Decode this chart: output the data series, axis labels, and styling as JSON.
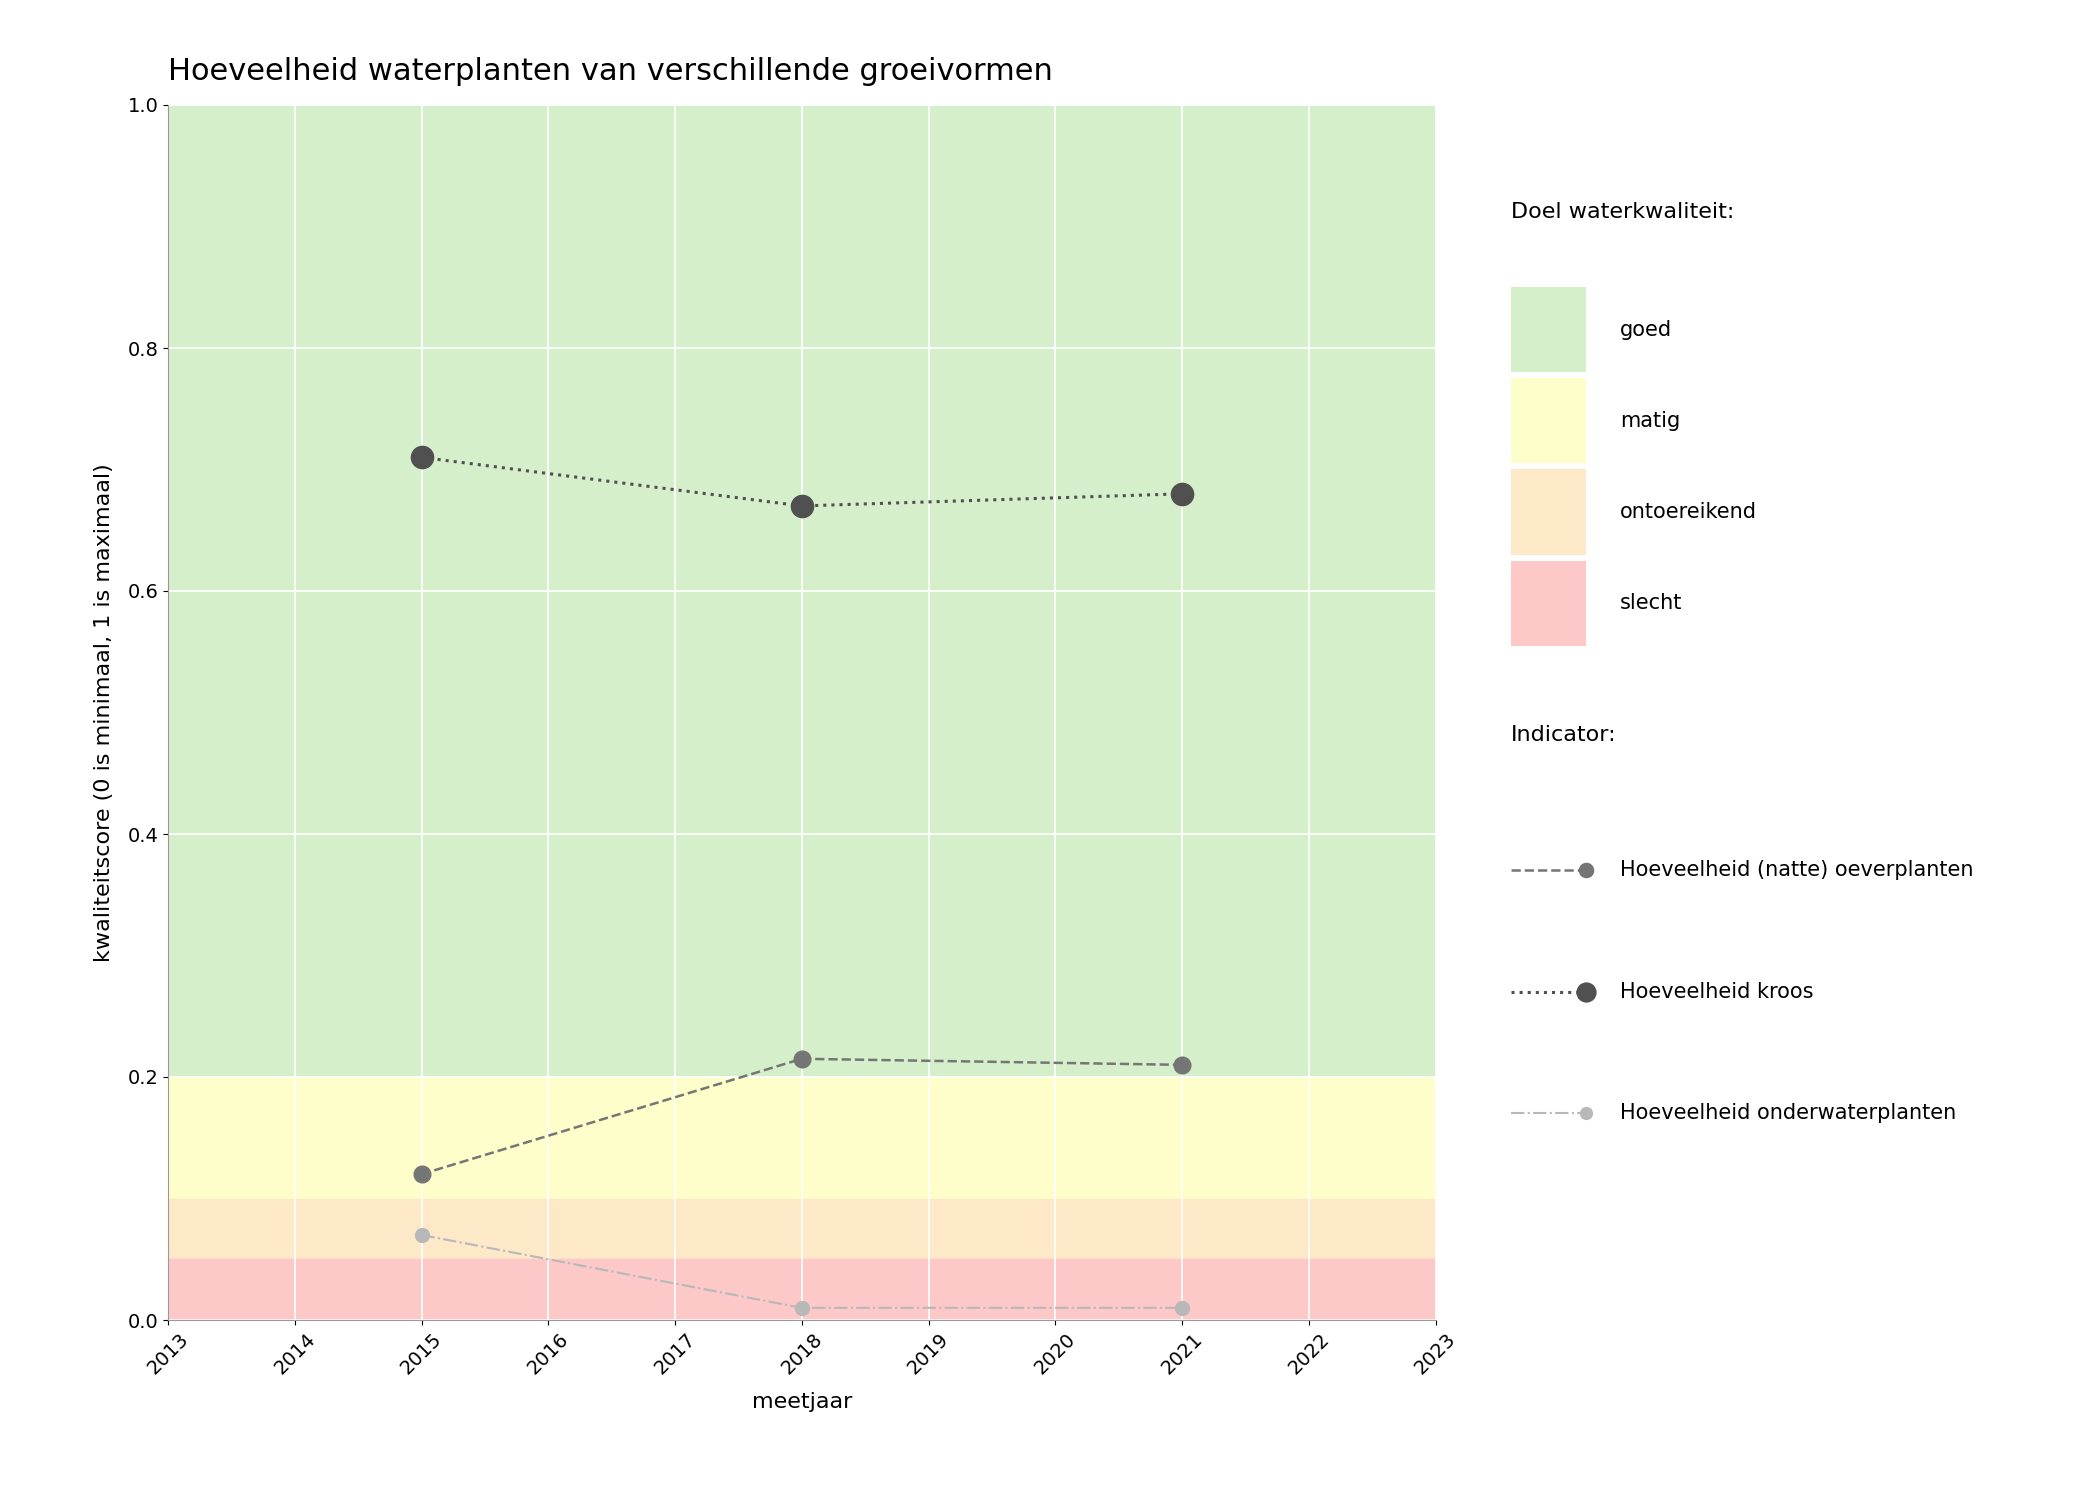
{
  "title": "Hoeveelheid waterplanten van verschillende groeivormen",
  "xlabel": "meetjaar",
  "ylabel": "kwaliteitscore (0 is minimaal, 1 is maximaal)",
  "xlim": [
    2013,
    2023
  ],
  "ylim": [
    0.0,
    1.0
  ],
  "xticks": [
    2013,
    2014,
    2015,
    2016,
    2017,
    2018,
    2019,
    2020,
    2021,
    2022,
    2023
  ],
  "yticks": [
    0.0,
    0.2,
    0.4,
    0.6,
    0.8,
    1.0
  ],
  "background_color": "#ffffff",
  "bg_zones": [
    {
      "ymin": 0.2,
      "ymax": 1.0,
      "color": "#d5efca",
      "label": "goed"
    },
    {
      "ymin": 0.1,
      "ymax": 0.2,
      "color": "#fefeca",
      "label": "matig"
    },
    {
      "ymin": 0.05,
      "ymax": 0.1,
      "color": "#fde8c8",
      "label": "ontoereikend"
    },
    {
      "ymin": 0.0,
      "ymax": 0.05,
      "color": "#fcc8c8",
      "label": "slecht"
    }
  ],
  "series": [
    {
      "name": "Hoeveelheid (natte) oeverplanten",
      "x": [
        2015,
        2018,
        2021
      ],
      "y": [
        0.12,
        0.215,
        0.21
      ],
      "color": "#757575",
      "linestyle": "--",
      "marker": "o",
      "markersize": 12,
      "linewidth": 1.8,
      "zorder": 3
    },
    {
      "name": "Hoeveelheid kroos",
      "x": [
        2015,
        2018,
        2021
      ],
      "y": [
        0.71,
        0.67,
        0.68
      ],
      "color": "#505050",
      "linestyle": ":",
      "marker": "o",
      "markersize": 16,
      "linewidth": 2.2,
      "zorder": 4
    },
    {
      "name": "Hoeveelheid onderwaterplanten",
      "x": [
        2015,
        2018,
        2021
      ],
      "y": [
        0.07,
        0.01,
        0.01
      ],
      "color": "#b8b8b8",
      "linestyle": "-.",
      "marker": "o",
      "markersize": 10,
      "linewidth": 1.5,
      "zorder": 2
    }
  ],
  "legend_quality_title": "Doel waterkwaliteit:",
  "legend_indicator_title": "Indicator:",
  "legend_quality_items": [
    {
      "label": "goed",
      "color": "#d5efca"
    },
    {
      "label": "matig",
      "color": "#fefeca"
    },
    {
      "label": "ontoereikend",
      "color": "#fde8c8"
    },
    {
      "label": "slecht",
      "color": "#fcc8c8"
    }
  ],
  "title_fontsize": 22,
  "axis_label_fontsize": 16,
  "tick_fontsize": 14,
  "legend_fontsize": 15
}
